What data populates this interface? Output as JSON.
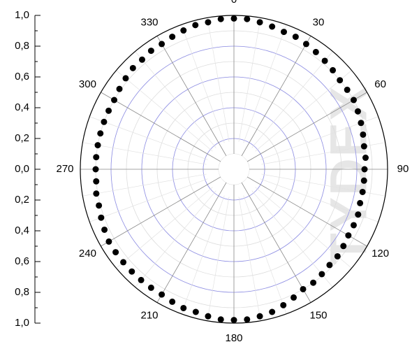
{
  "chart_data": {
    "type": "polar_scatter",
    "theta": [
      0,
      5,
      10,
      15,
      20,
      25,
      30,
      35,
      40,
      45,
      50,
      55,
      60,
      65,
      70,
      75,
      80,
      85,
      90,
      95,
      100,
      105,
      110,
      115,
      120,
      125,
      130,
      135,
      140,
      145,
      150,
      155,
      160,
      165,
      170,
      175,
      180,
      185,
      190,
      195,
      200,
      205,
      210,
      215,
      220,
      225,
      230,
      235,
      240,
      245,
      250,
      255,
      260,
      265,
      270,
      275,
      280,
      285,
      290,
      295,
      300,
      305,
      310,
      315,
      320,
      325,
      330,
      335,
      340,
      345,
      350,
      355
    ],
    "values": [
      0.98,
      0.98,
      0.97,
      0.96,
      0.95,
      0.95,
      0.94,
      0.93,
      0.92,
      0.91,
      0.9,
      0.9,
      0.9,
      0.89,
      0.88,
      0.87,
      0.86,
      0.86,
      0.85,
      0.85,
      0.85,
      0.85,
      0.86,
      0.86,
      0.86,
      0.87,
      0.88,
      0.88,
      0.89,
      0.9,
      0.9,
      0.92,
      0.94,
      0.96,
      0.97,
      0.98,
      0.98,
      0.98,
      0.97,
      0.96,
      0.96,
      0.95,
      0.94,
      0.94,
      0.94,
      0.94,
      0.94,
      0.94,
      0.94,
      0.93,
      0.92,
      0.91,
      0.91,
      0.9,
      0.9,
      0.9,
      0.9,
      0.9,
      0.9,
      0.9,
      0.9,
      0.91,
      0.92,
      0.93,
      0.93,
      0.94,
      0.94,
      0.95,
      0.96,
      0.97,
      0.97,
      0.98
    ],
    "color": "#000000",
    "rlim": [
      0,
      1
    ],
    "rticks": [
      {
        "value": 0,
        "label": "0,0"
      },
      {
        "value": 0.2,
        "label": "0,2"
      },
      {
        "value": 0.4,
        "label": "0,4"
      },
      {
        "value": 0.6,
        "label": "0,6"
      },
      {
        "value": 0.8,
        "label": "0,8"
      },
      {
        "value": 1,
        "label": "1,0"
      }
    ],
    "thetaticks": [
      0,
      30,
      60,
      90,
      120,
      150,
      180,
      210,
      240,
      270,
      300,
      330
    ],
    "grid": true,
    "watermark": "TYDEX"
  }
}
